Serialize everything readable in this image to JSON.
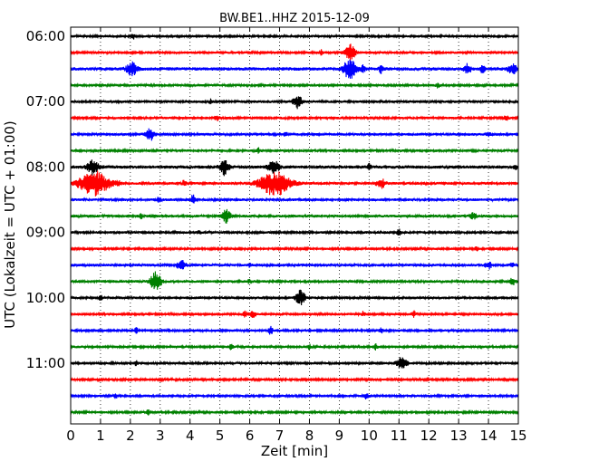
{
  "chart_data": {
    "type": "line",
    "title": "BW.BE1..HHZ 2015-12-09",
    "xlabel": "Zeit  [min]",
    "ylabel": "UTC (Lokalzeit = UTC + 01:00)",
    "xlim": [
      0,
      15
    ],
    "x_ticks": [
      "0",
      "1",
      "2",
      "3",
      "4",
      "5",
      "6",
      "7",
      "8",
      "9",
      "10",
      "11",
      "12",
      "13",
      "14",
      "15"
    ],
    "y_tick_labels": [
      "06:00",
      "07:00",
      "08:00",
      "09:00",
      "10:00",
      "11:00"
    ],
    "grid": "vertical dotted",
    "colors": [
      "#000000",
      "#ff0000",
      "#0000ff",
      "#008000"
    ],
    "traces": [
      {
        "start": "06:00",
        "color": "#000000",
        "noise": 1.4,
        "events": [
          [
            2.1,
            2.5,
            0.05
          ]
        ]
      },
      {
        "start": "06:15",
        "color": "#ff0000",
        "noise": 1.4,
        "events": [
          [
            8.4,
            3,
            0.04
          ],
          [
            9.35,
            9,
            0.12
          ]
        ]
      },
      {
        "start": "06:30",
        "color": "#0000ff",
        "noise": 1.8,
        "events": [
          [
            2.05,
            7,
            0.12
          ],
          [
            9.35,
            10,
            0.15
          ],
          [
            9.8,
            4,
            0.05
          ],
          [
            10.4,
            4,
            0.05
          ],
          [
            13.3,
            5,
            0.08
          ],
          [
            13.8,
            4,
            0.05
          ],
          [
            14.8,
            5,
            0.1
          ]
        ]
      },
      {
        "start": "06:45",
        "color": "#008000",
        "noise": 1.4,
        "events": [
          [
            12.3,
            2.5,
            0.04
          ]
        ]
      },
      {
        "start": "07:00",
        "color": "#000000",
        "noise": 1.5,
        "events": [
          [
            7.6,
            7,
            0.1
          ],
          [
            4.7,
            2.5,
            0.03
          ]
        ]
      },
      {
        "start": "07:15",
        "color": "#ff0000",
        "noise": 1.4,
        "events": [
          [
            4.9,
            3,
            0.05
          ],
          [
            14.6,
            3,
            0.05
          ]
        ]
      },
      {
        "start": "07:30",
        "color": "#0000ff",
        "noise": 1.5,
        "events": [
          [
            2.65,
            7,
            0.1
          ],
          [
            7.2,
            2.5,
            0.04
          ],
          [
            14.0,
            3,
            0.04
          ]
        ]
      },
      {
        "start": "07:45",
        "color": "#008000",
        "noise": 1.4,
        "events": [
          [
            6.3,
            2.5,
            0.04
          ]
        ]
      },
      {
        "start": "08:00",
        "color": "#000000",
        "noise": 1.8,
        "events": [
          [
            0.75,
            8,
            0.12
          ],
          [
            5.15,
            9,
            0.1
          ],
          [
            6.8,
            7,
            0.12
          ],
          [
            10.0,
            3,
            0.04
          ],
          [
            14.9,
            3,
            0.04
          ]
        ]
      },
      {
        "start": "08:15",
        "color": "#ff0000",
        "noise": 1.5,
        "events": [
          [
            0.8,
            13,
            0.35
          ],
          [
            3.8,
            4,
            0.04
          ],
          [
            6.85,
            13,
            0.35
          ],
          [
            10.4,
            5,
            0.1
          ],
          [
            1.6,
            3,
            0.04
          ]
        ]
      },
      {
        "start": "08:30",
        "color": "#0000ff",
        "noise": 1.5,
        "events": [
          [
            2.95,
            3,
            0.05
          ],
          [
            4.1,
            5,
            0.05
          ]
        ]
      },
      {
        "start": "08:45",
        "color": "#008000",
        "noise": 1.5,
        "events": [
          [
            5.2,
            7,
            0.1
          ],
          [
            2.35,
            3,
            0.04
          ],
          [
            13.5,
            3,
            0.08
          ]
        ]
      },
      {
        "start": "09:00",
        "color": "#000000",
        "noise": 1.4,
        "events": [
          [
            11.0,
            3,
            0.05
          ],
          [
            4.3,
            2,
            0.04
          ]
        ]
      },
      {
        "start": "09:15",
        "color": "#ff0000",
        "noise": 1.3,
        "events": [
          [
            13.6,
            2.5,
            0.04
          ]
        ]
      },
      {
        "start": "09:30",
        "color": "#0000ff",
        "noise": 1.5,
        "events": [
          [
            3.7,
            5,
            0.1
          ],
          [
            6.0,
            2.5,
            0.04
          ],
          [
            14.0,
            4,
            0.07
          ],
          [
            14.8,
            2.5,
            0.04
          ]
        ]
      },
      {
        "start": "09:45",
        "color": "#008000",
        "noise": 1.5,
        "events": [
          [
            2.85,
            10,
            0.12
          ],
          [
            14.8,
            4,
            0.06
          ],
          [
            6.0,
            2.5,
            0.04
          ]
        ]
      },
      {
        "start": "10:00",
        "color": "#000000",
        "noise": 1.5,
        "events": [
          [
            7.7,
            8,
            0.1
          ],
          [
            1.0,
            2.5,
            0.04
          ]
        ]
      },
      {
        "start": "10:15",
        "color": "#ff0000",
        "noise": 1.4,
        "events": [
          [
            5.85,
            3,
            0.05
          ],
          [
            6.1,
            5,
            0.06
          ],
          [
            11.5,
            3,
            0.05
          ],
          [
            9.8,
            2.5,
            0.04
          ]
        ]
      },
      {
        "start": "10:30",
        "color": "#0000ff",
        "noise": 1.4,
        "events": [
          [
            6.7,
            4,
            0.05
          ],
          [
            2.2,
            2.5,
            0.04
          ],
          [
            10.4,
            2.5,
            0.04
          ]
        ]
      },
      {
        "start": "10:45",
        "color": "#008000",
        "noise": 1.4,
        "events": [
          [
            5.4,
            3,
            0.05
          ],
          [
            10.2,
            3,
            0.05
          ],
          [
            8.0,
            2.5,
            0.04
          ]
        ]
      },
      {
        "start": "11:00",
        "color": "#000000",
        "noise": 1.4,
        "events": [
          [
            11.1,
            6,
            0.12
          ],
          [
            2.2,
            2.5,
            0.04
          ]
        ]
      },
      {
        "start": "11:15",
        "color": "#ff0000",
        "noise": 1.2,
        "events": []
      },
      {
        "start": "11:30",
        "color": "#0000ff",
        "noise": 1.4,
        "events": [
          [
            9.9,
            3,
            0.05
          ],
          [
            1.5,
            2.5,
            0.04
          ]
        ]
      },
      {
        "start": "11:45",
        "color": "#008000",
        "noise": 1.3,
        "events": [
          [
            2.6,
            2.5,
            0.04
          ]
        ]
      }
    ]
  }
}
